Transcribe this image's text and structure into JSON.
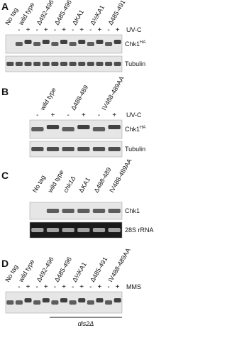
{
  "panels": [
    {
      "label": "A",
      "treatment": "UV-C",
      "blots": [
        {
          "text": "Chk1",
          "sup": "HA"
        },
        {
          "text": "Tubulin"
        }
      ],
      "lanes": [
        {
          "name": "No tag",
          "signs": []
        },
        {
          "name": "wild type",
          "signs": [
            "-",
            "+"
          ]
        },
        {
          "name": "Δ492-496",
          "signs": [
            "-",
            "+"
          ]
        },
        {
          "name": "Δ485-496",
          "signs": [
            "-",
            "+"
          ]
        },
        {
          "name": "ΔKA1",
          "signs": [
            "-",
            "+"
          ]
        },
        {
          "name": "Δ½KA1",
          "signs": [
            "-",
            "+"
          ]
        },
        {
          "name": "Δ485-491",
          "signs": [
            "-",
            "+"
          ]
        }
      ]
    },
    {
      "label": "B",
      "treatment": "UV-C",
      "blots": [
        {
          "text": "Chk1",
          "sup": "HA"
        },
        {
          "text": "Tubulin"
        }
      ],
      "lanes": [
        {
          "name": "wild type",
          "signs": [
            "-",
            "+"
          ]
        },
        {
          "name": "Δ488-489",
          "signs": [
            "-",
            "+"
          ]
        },
        {
          "name": "IV488-489AA",
          "signs": [
            "-",
            "+"
          ]
        }
      ]
    },
    {
      "label": "C",
      "blots": [
        {
          "text": "Chk1"
        },
        {
          "text": "28S rRNA"
        }
      ],
      "lanes": [
        {
          "name": "No tag",
          "signs": []
        },
        {
          "name": "wild type",
          "signs": []
        },
        {
          "name": "chk1Δ",
          "style": "italic",
          "signs": []
        },
        {
          "name": "ΔKA1",
          "signs": []
        },
        {
          "name": "Δ488-489",
          "signs": []
        },
        {
          "name": "IV488-489AA",
          "signs": []
        }
      ]
    },
    {
      "label": "D",
      "treatment": "MMS",
      "blots": [
        {
          "text": ""
        }
      ],
      "genotype": "dis2Δ",
      "lanes": [
        {
          "name": "No tag",
          "signs": []
        },
        {
          "name": "wild type",
          "signs": [
            "-",
            "+"
          ]
        },
        {
          "name": "Δ492-496",
          "signs": [
            "-",
            "+"
          ]
        },
        {
          "name": "Δ485-496",
          "signs": [
            "-",
            "+"
          ]
        },
        {
          "name": "Δ½KA1",
          "signs": [
            "-",
            "+"
          ]
        },
        {
          "name": "Δ485-491",
          "signs": [
            "-",
            "+"
          ]
        },
        {
          "name": "IV488-489AA",
          "signs": [
            "-",
            "+"
          ]
        }
      ]
    }
  ]
}
